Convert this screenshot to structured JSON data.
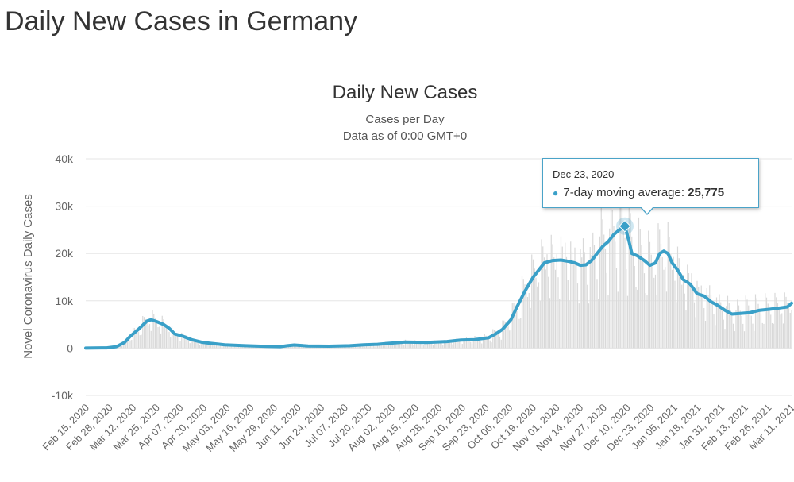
{
  "page": {
    "title": "Daily New Cases in Germany"
  },
  "tooltip": {
    "date": "Dec 23, 2020",
    "series_label": "7-day moving average:",
    "value": "25,775"
  },
  "colors": {
    "line": "#3aa0c8",
    "bars": "#d9d9d9",
    "grid": "#e6e6e6",
    "axis_text": "#666666"
  },
  "chart_data": {
    "type": "line",
    "title": "Daily New Cases",
    "subtitle": "Cases per Day",
    "subtitle2": "Data as of 0:00 GMT+0",
    "xlabel": "",
    "ylabel": "Novel Coronavirus Daily Cases",
    "ylim": [
      -10000,
      40000
    ],
    "y_ticks": [
      -10000,
      0,
      10000,
      20000,
      30000,
      40000
    ],
    "y_tick_labels": [
      "-10k",
      "0",
      "10k",
      "20k",
      "30k",
      "40k"
    ],
    "x_tick_labels": [
      "Feb 15, 2020",
      "Feb 28, 2020",
      "Mar 12, 2020",
      "Mar 25, 2020",
      "Apr 07, 2020",
      "Apr 20, 2020",
      "May 03, 2020",
      "May 16, 2020",
      "May 29, 2020",
      "Jun 11, 2020",
      "Jun 24, 2020",
      "Jul 07, 2020",
      "Jul 20, 2020",
      "Aug 02, 2020",
      "Aug 15, 2020",
      "Aug 28, 2020",
      "Sep 10, 2020",
      "Sep 23, 2020",
      "Oct 06, 2020",
      "Oct 19, 2020",
      "Nov 01, 2020",
      "Nov 14, 2020",
      "Nov 27, 2020",
      "Dec 10, 2020",
      "Dec 23, 2020",
      "Jan 05, 2021",
      "Jan 18, 2021",
      "Jan 31, 2021",
      "Feb 13, 2021",
      "Feb 26, 2021",
      "Mar 11, 2021"
    ],
    "x_start": "2020-02-15",
    "x_days_span": 390,
    "series": [
      {
        "name": "7-day moving average",
        "points": [
          [
            0,
            0
          ],
          [
            15,
            50
          ],
          [
            22,
            300
          ],
          [
            28,
            1200
          ],
          [
            32,
            2500
          ],
          [
            38,
            4000
          ],
          [
            44,
            5700
          ],
          [
            47,
            6000
          ],
          [
            51,
            5600
          ],
          [
            56,
            5000
          ],
          [
            60,
            4200
          ],
          [
            64,
            3000
          ],
          [
            70,
            2500
          ],
          [
            76,
            1800
          ],
          [
            84,
            1200
          ],
          [
            90,
            1000
          ],
          [
            100,
            700
          ],
          [
            115,
            500
          ],
          [
            130,
            350
          ],
          [
            140,
            300
          ],
          [
            145,
            500
          ],
          [
            150,
            650
          ],
          [
            160,
            450
          ],
          [
            175,
            400
          ],
          [
            190,
            500
          ],
          [
            200,
            700
          ],
          [
            210,
            800
          ],
          [
            218,
            1000
          ],
          [
            230,
            1300
          ],
          [
            245,
            1200
          ],
          [
            260,
            1400
          ],
          [
            270,
            1700
          ],
          [
            280,
            1800
          ],
          [
            290,
            2200
          ],
          [
            295,
            3000
          ],
          [
            300,
            4000
          ],
          [
            306,
            6000
          ],
          [
            310,
            8500
          ],
          [
            316,
            12000
          ],
          [
            322,
            15000
          ],
          [
            330,
            18000
          ],
          [
            336,
            18500
          ],
          [
            342,
            18600
          ],
          [
            348,
            18300
          ],
          [
            352,
            18000
          ],
          [
            356,
            17500
          ],
          [
            360,
            17600
          ],
          [
            364,
            18500
          ],
          [
            368,
            20000
          ],
          [
            372,
            21500
          ],
          [
            376,
            22500
          ],
          [
            380,
            24000
          ],
          [
            384,
            25000
          ],
          [
            388,
            25775
          ],
          [
            391,
            22500
          ],
          [
            393,
            20000
          ],
          [
            397,
            19500
          ],
          [
            402,
            18500
          ],
          [
            406,
            17500
          ],
          [
            410,
            18000
          ],
          [
            413,
            20000
          ],
          [
            416,
            20500
          ],
          [
            419,
            20000
          ],
          [
            422,
            18000
          ],
          [
            426,
            16500
          ],
          [
            430,
            14500
          ],
          [
            435,
            13500
          ],
          [
            440,
            11500
          ],
          [
            445,
            11000
          ],
          [
            450,
            9800
          ],
          [
            455,
            9000
          ],
          [
            460,
            8000
          ],
          [
            465,
            7200
          ],
          [
            470,
            7300
          ],
          [
            478,
            7500
          ],
          [
            485,
            8000
          ],
          [
            492,
            8200
          ],
          [
            500,
            8500
          ],
          [
            505,
            8700
          ],
          [
            508,
            9500
          ]
        ]
      }
    ],
    "bars_note": "daily reported cases shown as thin gray bars",
    "highlight": {
      "x": 388,
      "value": 25775,
      "label": "Dec 23, 2020"
    }
  }
}
